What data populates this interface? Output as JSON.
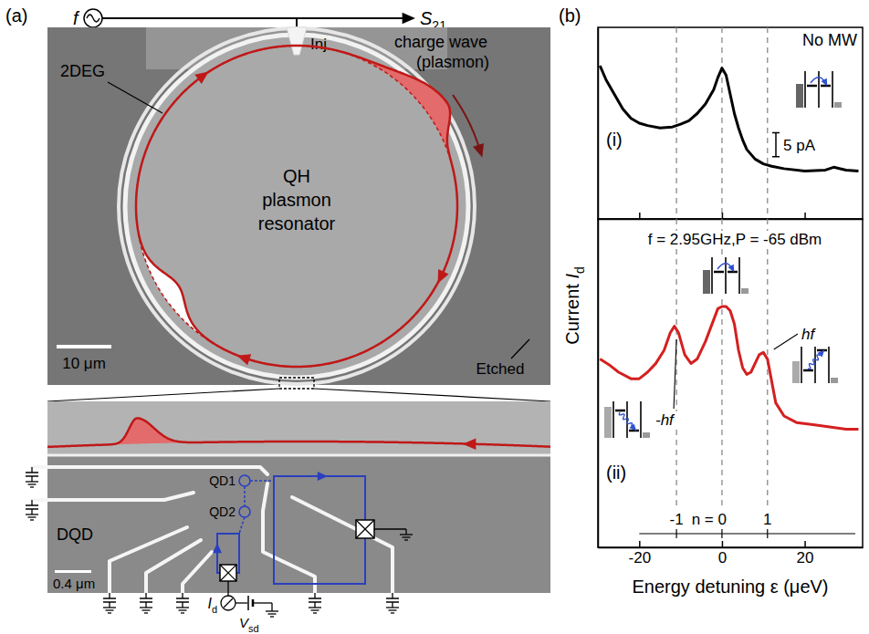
{
  "panels": {
    "a": "(a)",
    "b": "(b)"
  },
  "diagram": {
    "source_label": "f",
    "output_label": {
      "text": "S",
      "sub": "21"
    },
    "injector": "Inj",
    "region": "2DEG",
    "wave": [
      "charge wave",
      "(plasmon)"
    ],
    "resonator": [
      "QH",
      "plasmon",
      "resonator"
    ],
    "scale_bar": "10 μm",
    "etched": "Etched",
    "dqd": "DQD",
    "qd1": "QD1",
    "qd2": "QD2",
    "zoom_scale_bar": "0.4 μm",
    "current": {
      "text": "I",
      "sub": "d"
    },
    "bias": {
      "text": "V",
      "sub": "sd"
    }
  },
  "chart_data": [
    {
      "type": "line",
      "annotation": "No MW",
      "x": [
        -29.5,
        -28,
        -26,
        -24,
        -22,
        -20,
        -18,
        -15,
        -12,
        -10,
        -8,
        -6,
        -4,
        -2,
        -1,
        0,
        1,
        2,
        3,
        4,
        5,
        6,
        8,
        10,
        12,
        15,
        20,
        25,
        27,
        30,
        33
      ],
      "series": [
        {
          "name": "(i)",
          "color": "#000000",
          "values": [
            32,
            29,
            26,
            23,
            21,
            20,
            19.5,
            19,
            19.2,
            19.8,
            20.5,
            22,
            24,
            27,
            29.5,
            31.5,
            30,
            26,
            22,
            19,
            16.5,
            14.5,
            12.5,
            11.5,
            11,
            10.5,
            10,
            10.2,
            10.8,
            10.2,
            10
          ]
        }
      ],
      "xlim": [
        -30,
        34
      ],
      "ylim": [
        0,
        40
      ],
      "xticks": [
        -20,
        0,
        20
      ],
      "yticks": [],
      "tick_labels": false,
      "reference_lines": [
        -11,
        0,
        11
      ],
      "scale_bar": {
        "value": 5,
        "label": "5 pA"
      }
    },
    {
      "type": "line",
      "annotation": "f = 2.95GHz,P = -65 dBm",
      "x": [
        -29.5,
        -27,
        -25,
        -22,
        -20,
        -18,
        -16,
        -14,
        -12.5,
        -11.5,
        -10.5,
        -9,
        -7.5,
        -6,
        -4,
        -2,
        -1,
        0,
        1,
        2,
        3,
        4,
        5,
        6,
        7,
        8,
        9,
        10,
        11,
        12,
        13,
        15,
        18,
        22,
        26,
        30,
        33
      ],
      "series": [
        {
          "name": "(ii)",
          "color": "#d42020",
          "values": [
            43,
            41.5,
            40,
            38.5,
            38.5,
            40,
            42,
            45,
            49,
            50.5,
            49,
            44,
            42,
            43,
            47,
            52,
            54.5,
            55,
            55,
            54,
            51,
            45,
            41,
            39.5,
            40,
            42,
            44,
            44.5,
            43,
            38,
            33,
            30,
            28.5,
            28,
            27.5,
            27,
            27
          ]
        }
      ],
      "xlim": [
        -30,
        34
      ],
      "ylim": [
        0,
        75
      ],
      "xticks": [
        -20,
        0,
        20
      ],
      "yticks": [],
      "tick_labels": "x",
      "x_label": "Energy detuning ε (μeV)",
      "y_label": {
        "text": "Current ",
        "var": "I",
        "sub": "d"
      },
      "reference_lines": [
        -11,
        0,
        11
      ],
      "photon_labels": [
        {
          "x": -11,
          "label": "-1"
        },
        {
          "x": 0,
          "label": "n = 0"
        },
        {
          "x": 11,
          "label": "1"
        }
      ],
      "inset_labels": [
        {
          "x": -11,
          "label": "-hf"
        },
        {
          "x": 11,
          "label": "hf"
        }
      ]
    }
  ]
}
